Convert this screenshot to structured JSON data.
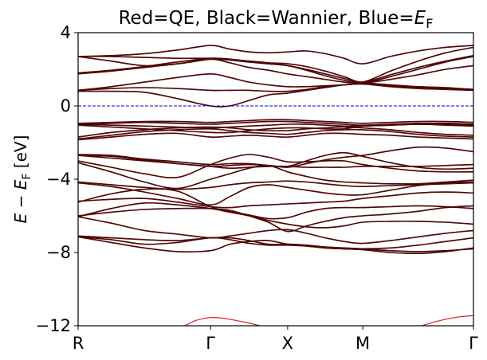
{
  "chart_data": {
    "type": "line",
    "title": "Red=QE, Black=Wannier, Blue=$E_\\mathrm{F}$",
    "title_parts": {
      "red_label": "Red=QE, Black=Wannier, Blue=",
      "ef_symbol": "E",
      "ef_subscript": "F"
    },
    "xlabel": "",
    "ylabel": "$E - E_\\mathrm{F}$ [eV]",
    "ylabel_parts": {
      "e": "E",
      "minus": " − ",
      "ef": "E",
      "ef_sub": "F",
      "units": " [eV]"
    },
    "ylim": [
      -12,
      4
    ],
    "yticks": [
      -12,
      -8,
      -4,
      0,
      4
    ],
    "ytick_labels": [
      "−12",
      "−8",
      "−4",
      "0",
      "4"
    ],
    "xlim": [
      0,
      1
    ],
    "xticks": [
      0,
      0.335,
      0.53,
      0.72,
      1.0
    ],
    "xtick_labels": [
      "R",
      "Γ",
      "X",
      "M",
      "Γ"
    ],
    "fermi_level": 0,
    "colors": {
      "qe": "#dd1c1c",
      "wannier": "#000000",
      "fermi": "#0000cc",
      "overlap": "#6e0000"
    },
    "band_x": [
      0,
      0.0837,
      0.1675,
      0.2512,
      0.335,
      0.3838,
      0.4325,
      0.4813,
      0.53,
      0.5775,
      0.625,
      0.6725,
      0.72,
      0.79,
      0.86,
      0.93,
      1.0
    ],
    "series": [
      {
        "values": [
          -7.15,
          -7.3,
          -7.55,
          -7.45,
          -7.2,
          -7.3,
          -7.5,
          -7.6,
          -7.6,
          -7.65,
          -7.75,
          -7.8,
          -7.8,
          -7.75,
          -7.6,
          -7.4,
          -7.2
        ]
      },
      {
        "values": [
          -7.1,
          -7.2,
          -7.3,
          -7.35,
          -7.2,
          -7.2,
          -7.35,
          -7.55,
          -7.55,
          -7.6,
          -7.7,
          -7.75,
          -7.8,
          -7.9,
          -7.95,
          -7.9,
          -7.8
        ]
      },
      {
        "values": [
          -7.15,
          -7.45,
          -7.75,
          -7.95,
          -7.9,
          -7.55,
          -7.4,
          -7.35,
          -7.55,
          -7.65,
          -7.75,
          -7.8,
          -7.85,
          -8.0,
          -8.05,
          -7.95,
          -7.75
        ]
      },
      {
        "values": [
          -6.05,
          -6.4,
          -6.8,
          -7.0,
          -7.2,
          -7.1,
          -6.95,
          -6.8,
          -6.75,
          -6.95,
          -7.2,
          -7.4,
          -7.5,
          -7.35,
          -7.15,
          -6.95,
          -6.8
        ]
      },
      {
        "values": [
          -6.05,
          -5.6,
          -5.3,
          -5.4,
          -5.6,
          -5.8,
          -6.0,
          -6.25,
          -6.45,
          -6.6,
          -6.65,
          -6.55,
          -6.35,
          -6.3,
          -6.3,
          -6.35,
          -6.45
        ]
      },
      {
        "values": [
          -6.0,
          -5.8,
          -5.65,
          -5.6,
          -5.6,
          -5.7,
          -6.0,
          -6.35,
          -6.85,
          -6.55,
          -6.3,
          -6.1,
          -6.0,
          -5.9,
          -5.75,
          -5.55,
          -5.45
        ]
      },
      {
        "values": [
          -5.25,
          -4.8,
          -4.55,
          -4.65,
          -5.5,
          -5.75,
          -5.95,
          -6.15,
          -6.1,
          -5.8,
          -5.6,
          -5.55,
          -5.55,
          -5.5,
          -5.45,
          -5.5,
          -5.6
        ]
      },
      {
        "values": [
          -5.2,
          -5.1,
          -5.05,
          -5.25,
          -5.5,
          -5.55,
          -5.45,
          -5.4,
          -5.35,
          -5.3,
          -5.25,
          -5.2,
          -5.05,
          -4.9,
          -4.75,
          -4.7,
          -4.75
        ]
      },
      {
        "values": [
          -4.2,
          -4.4,
          -4.7,
          -5.05,
          -5.4,
          -4.95,
          -4.45,
          -4.3,
          -4.45,
          -4.6,
          -4.75,
          -4.85,
          -4.85,
          -4.6,
          -4.35,
          -4.2,
          -4.15
        ]
      },
      {
        "values": [
          -4.15,
          -4.3,
          -4.45,
          -4.55,
          -4.45,
          -4.3,
          -4.2,
          -4.15,
          -4.1,
          -4.15,
          -4.25,
          -4.35,
          -4.4,
          -4.35,
          -4.3,
          -4.25,
          -4.2
        ]
      },
      {
        "values": [
          -3.1,
          -3.6,
          -4.15,
          -4.5,
          -4.0,
          -3.7,
          -3.4,
          -3.25,
          -3.6,
          -3.85,
          -4.05,
          -4.15,
          -4.2,
          -4.25,
          -4.25,
          -4.15,
          -4.05
        ]
      },
      {
        "values": [
          -3.0,
          -3.35,
          -3.7,
          -3.9,
          -3.2,
          -2.85,
          -2.65,
          -2.8,
          -3.05,
          -3.05,
          -3.0,
          -3.0,
          -3.2,
          -3.4,
          -3.55,
          -3.6,
          -3.6
        ]
      },
      {
        "values": [
          -2.7,
          -2.75,
          -2.95,
          -3.15,
          -3.3,
          -3.4,
          -3.35,
          -3.3,
          -3.3,
          -3.35,
          -3.35,
          -3.35,
          -3.3,
          -3.3,
          -3.3,
          -3.25,
          -3.2
        ]
      },
      {
        "values": [
          -2.65,
          -2.7,
          -2.9,
          -3.05,
          -3.2,
          -3.15,
          -3.15,
          -3.25,
          -3.3,
          -3.0,
          -2.7,
          -2.55,
          -2.75,
          -3.1,
          -3.35,
          -3.45,
          -3.4
        ]
      },
      {
        "values": [
          -2.7,
          -2.85,
          -3.0,
          -3.15,
          -3.3,
          -3.25,
          -3.2,
          -3.25,
          -3.35,
          -3.15,
          -2.95,
          -2.8,
          -2.7,
          -2.45,
          -2.25,
          -2.3,
          -2.5
        ]
      },
      {
        "values": [
          -1.85,
          -1.7,
          -1.55,
          -1.5,
          -1.7,
          -1.65,
          -1.6,
          -1.65,
          -1.7,
          -1.6,
          -1.5,
          -1.5,
          -1.55,
          -1.6,
          -1.7,
          -1.75,
          -1.8
        ]
      },
      {
        "values": [
          -1.8,
          -1.6,
          -1.4,
          -1.3,
          -1.25,
          -1.35,
          -1.45,
          -1.5,
          -1.55,
          -1.45,
          -1.35,
          -1.3,
          -1.3,
          -1.4,
          -1.55,
          -1.65,
          -1.7
        ]
      },
      {
        "values": [
          -1.7,
          -1.45,
          -1.3,
          -1.2,
          -1.15,
          -1.2,
          -1.3,
          -1.35,
          -1.35,
          -1.25,
          -1.2,
          -1.15,
          -1.2,
          -1.3,
          -1.45,
          -1.55,
          -1.6
        ]
      },
      {
        "values": [
          -1.05,
          -1.15,
          -1.25,
          -1.35,
          -1.45,
          -1.45,
          -1.35,
          -1.25,
          -1.2,
          -1.2,
          -1.25,
          -1.25,
          -1.1,
          -1.05,
          -1.0,
          -1.05,
          -1.1
        ]
      },
      {
        "values": [
          -1.0,
          -1.05,
          -1.1,
          -1.15,
          -1.2,
          -1.15,
          -1.1,
          -1.05,
          -1.0,
          -1.0,
          -1.05,
          -1.1,
          -1.1,
          -1.05,
          -1.0,
          -1.0,
          -1.05
        ]
      },
      {
        "values": [
          -1.0,
          -0.95,
          -0.9,
          -0.95,
          -1.0,
          -0.95,
          -0.9,
          -0.85,
          -0.85,
          -0.9,
          -0.95,
          -1.0,
          -1.05,
          -1.0,
          -0.95,
          -0.95,
          -1.0
        ]
      },
      {
        "values": [
          -0.95,
          -0.9,
          -0.85,
          -0.85,
          -0.9,
          -0.85,
          -0.8,
          -0.75,
          -0.75,
          -0.8,
          -0.85,
          -0.9,
          -0.95,
          -0.9,
          -0.85,
          -0.85,
          -0.9
        ]
      },
      {
        "values": [
          0.8,
          0.8,
          0.75,
          0.4,
          0.0,
          0.0,
          0.3,
          0.6,
          0.7,
          0.85,
          1.0,
          1.15,
          1.2,
          1.05,
          0.95,
          0.9,
          0.85
        ]
      },
      {
        "values": [
          0.85,
          0.95,
          1.0,
          0.95,
          0.85,
          0.85,
          0.85,
          0.8,
          0.8,
          0.9,
          1.05,
          1.15,
          1.2,
          1.1,
          1.0,
          0.95,
          0.9
        ]
      },
      {
        "values": [
          0.85,
          1.05,
          1.3,
          1.55,
          1.75,
          1.55,
          1.3,
          1.15,
          1.05,
          1.05,
          1.1,
          1.15,
          1.25,
          1.15,
          1.05,
          1.0,
          0.9
        ]
      },
      {
        "values": [
          1.75,
          1.9,
          2.1,
          2.3,
          2.55,
          2.35,
          2.1,
          1.95,
          1.75,
          1.6,
          1.45,
          1.3,
          1.25,
          1.45,
          1.7,
          2.0,
          2.2
        ]
      },
      {
        "values": [
          1.8,
          1.95,
          2.15,
          2.4,
          2.6,
          2.55,
          2.4,
          2.3,
          2.2,
          1.95,
          1.65,
          1.4,
          1.25,
          1.6,
          2.0,
          2.4,
          2.7
        ]
      },
      {
        "values": [
          2.7,
          2.45,
          2.2,
          2.3,
          2.55,
          2.5,
          2.4,
          2.35,
          2.3,
          2.15,
          1.9,
          1.6,
          1.3,
          1.7,
          2.1,
          2.45,
          2.75
        ]
      },
      {
        "values": [
          2.7,
          2.7,
          2.65,
          2.6,
          2.6,
          2.55,
          2.45,
          2.35,
          2.2,
          2.0,
          1.75,
          1.5,
          1.3,
          1.9,
          2.45,
          2.9,
          3.2
        ]
      },
      {
        "values": [
          2.7,
          2.75,
          2.85,
          3.05,
          3.3,
          3.1,
          2.95,
          2.9,
          2.95,
          3.0,
          2.85,
          2.6,
          2.3,
          2.7,
          3.0,
          3.2,
          3.3
        ]
      }
    ],
    "qe_only_bands": [
      {
        "x": [
          0.27,
          0.3,
          0.335,
          0.37,
          0.42,
          0.46
        ],
        "values": [
          -12.0,
          -11.7,
          -11.55,
          -11.6,
          -11.8,
          -12.0
        ]
      },
      {
        "x": [
          0.87,
          0.9,
          0.94,
          0.97,
          1.0
        ],
        "values": [
          -12.0,
          -11.8,
          -11.6,
          -11.5,
          -11.45
        ]
      }
    ]
  }
}
